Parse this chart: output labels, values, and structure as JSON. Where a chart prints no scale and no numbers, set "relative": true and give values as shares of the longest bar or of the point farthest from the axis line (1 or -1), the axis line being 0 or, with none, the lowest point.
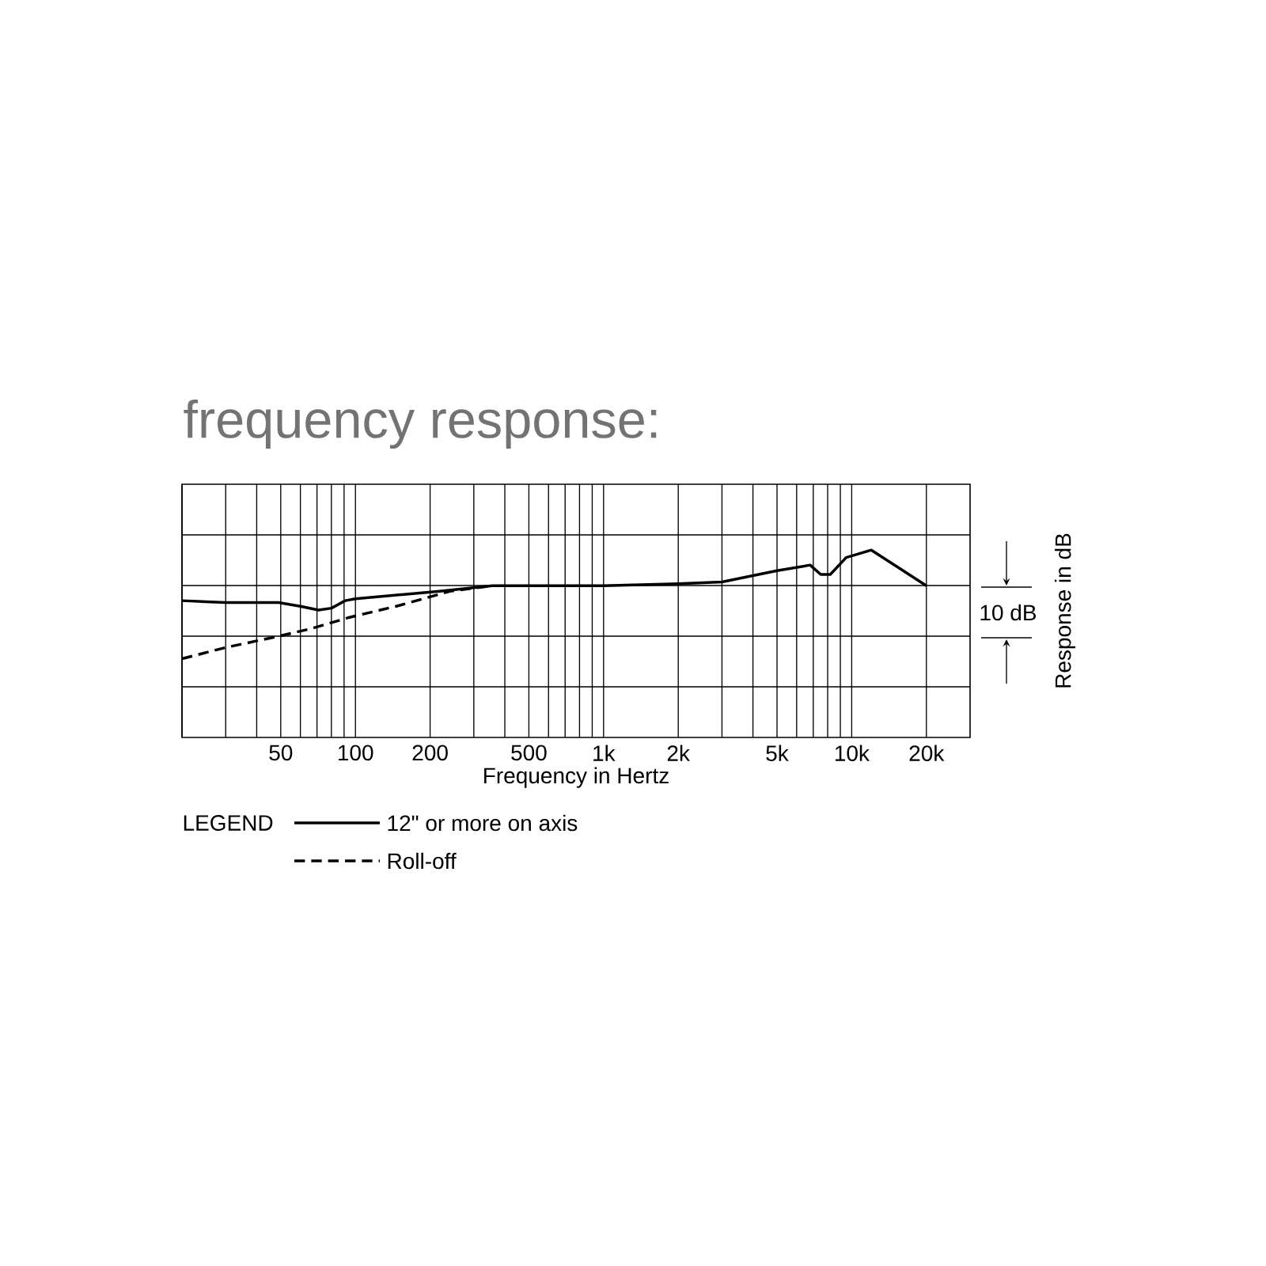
{
  "chart_data": {
    "type": "line",
    "title": "frequency response:",
    "xlabel": "Frequency in Hertz",
    "ylabel": "Response in dB",
    "legend_title": "LEGEND",
    "legend": "bottom",
    "log": "x",
    "grid": true,
    "xlim": [
      20,
      30000
    ],
    "relative": true,
    "xticks": [
      {
        "value": 20,
        "label": null
      },
      {
        "value": 30,
        "label": null
      },
      {
        "value": 40,
        "label": null
      },
      50,
      {
        "value": 60,
        "label": null
      },
      {
        "value": 70,
        "label": null
      },
      {
        "value": 80,
        "label": null
      },
      {
        "value": 90,
        "label": null
      },
      100,
      200,
      {
        "value": 300,
        "label": null
      },
      {
        "value": 400,
        "label": null
      },
      500,
      {
        "value": 600,
        "label": null
      },
      {
        "value": 700,
        "label": null
      },
      {
        "value": 800,
        "label": null
      },
      {
        "value": 900,
        "label": null
      },
      {
        "value": 1000,
        "label": "1k"
      },
      {
        "value": 2000,
        "label": "2k"
      },
      {
        "value": 3000,
        "label": null
      },
      {
        "value": 4000,
        "label": null
      },
      {
        "value": 5000,
        "label": "5k"
      },
      {
        "value": 6000,
        "label": null
      },
      {
        "value": 7000,
        "label": null
      },
      {
        "value": 8000,
        "label": null
      },
      {
        "value": 9000,
        "label": null
      },
      {
        "value": 10000,
        "label": "10k"
      },
      {
        "value": 20000,
        "label": "20k"
      }
    ],
    "annotations": [
      "10 dB"
    ],
    "series": [
      {
        "name": "12\" or more on axis",
        "color": "#000000",
        "line_style": "solid",
        "x": [
          20,
          30,
          49,
          60,
          71,
          80,
          91,
          100,
          120,
          218,
          356,
          1000,
          2000,
          3000,
          5000,
          6800,
          7500,
          8200,
          9500,
          12000,
          20000
        ],
        "values": [
          0.73,
          0.72,
          0.72,
          0.7,
          0.68,
          0.69,
          0.73,
          0.74,
          0.75,
          0.78,
          0.81,
          0.81,
          0.82,
          0.83,
          0.89,
          0.92,
          0.87,
          0.87,
          0.96,
          1,
          0.81
        ]
      },
      {
        "name": "Roll-off",
        "color": "#000000",
        "line_style": "dashed",
        "x": [
          20,
          30,
          49,
          66,
          94,
          146,
          240,
          356
        ],
        "values": [
          0.42,
          0.48,
          0.54,
          0.58,
          0.64,
          0.7,
          0.78,
          0.81
        ]
      }
    ]
  }
}
